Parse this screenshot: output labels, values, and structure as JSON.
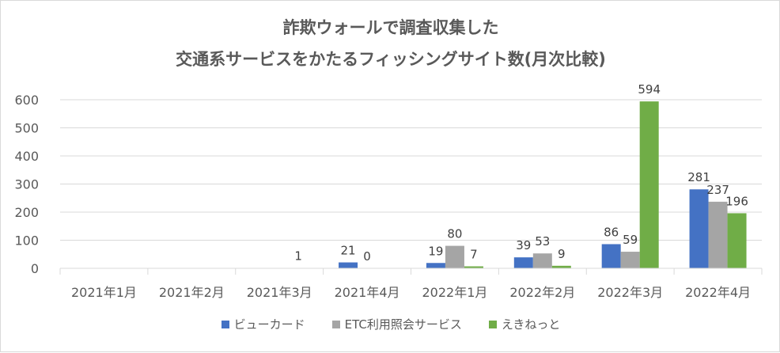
{
  "chart_data": {
    "type": "bar",
    "title_lines": [
      "詐欺ウォールで調査収集した",
      "交通系サービスをかたるフィッシングサイト数(月次比較)"
    ],
    "categories": [
      "2021年1月",
      "2021年2月",
      "2021年3月",
      "2021年4月",
      "2022年1月",
      "2022年2月",
      "2022年3月",
      "2022年4月"
    ],
    "series": [
      {
        "name": "ビューカード",
        "color": "#4472c4",
        "values": [
          null,
          null,
          null,
          21,
          19,
          39,
          86,
          281
        ]
      },
      {
        "name": "ETC利用照会サービス",
        "color": "#a5a5a5",
        "values": [
          null,
          null,
          null,
          0,
          80,
          53,
          59,
          237
        ]
      },
      {
        "name": "えきねっと",
        "color": "#70ad47",
        "values": [
          null,
          null,
          1,
          null,
          7,
          9,
          594,
          196
        ]
      }
    ],
    "yticks": [
      0,
      100,
      200,
      300,
      400,
      500,
      600
    ],
    "ylim": [
      0,
      600
    ],
    "grid": true,
    "legend_position": "bottom"
  }
}
